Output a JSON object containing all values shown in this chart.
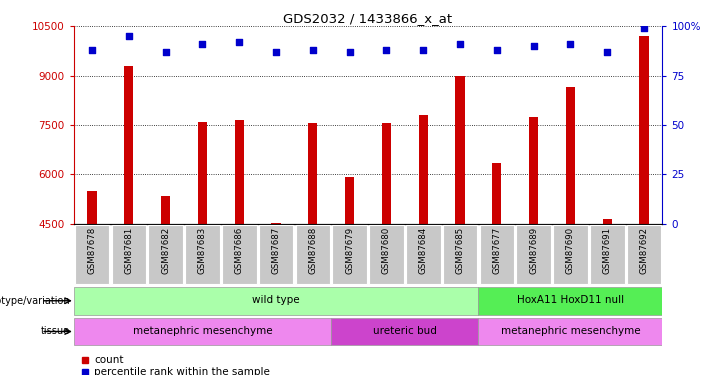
{
  "title": "GDS2032 / 1433866_x_at",
  "samples": [
    "GSM87678",
    "GSM87681",
    "GSM87682",
    "GSM87683",
    "GSM87686",
    "GSM87687",
    "GSM87688",
    "GSM87679",
    "GSM87680",
    "GSM87684",
    "GSM87685",
    "GSM87677",
    "GSM87689",
    "GSM87690",
    "GSM87691",
    "GSM87692"
  ],
  "counts": [
    5500,
    9300,
    5350,
    7600,
    7650,
    4520,
    7550,
    5900,
    7550,
    7800,
    9000,
    6350,
    7750,
    8650,
    4650,
    10200
  ],
  "percentile_ranks": [
    88,
    95,
    87,
    91,
    92,
    87,
    88,
    87,
    88,
    88,
    91,
    88,
    90,
    91,
    87,
    99
  ],
  "ylim_left": [
    4500,
    10500
  ],
  "ylim_right": [
    0,
    100
  ],
  "yticks_left": [
    4500,
    6000,
    7500,
    9000,
    10500
  ],
  "yticks_right": [
    0,
    25,
    50,
    75,
    100
  ],
  "bar_color": "#cc0000",
  "dot_color": "#0000cc",
  "left_tick_color": "#cc0000",
  "right_tick_color": "#0000cc",
  "grid_color": "#000000",
  "background_color": "#ffffff",
  "tick_label_bg": "#c8c8c8",
  "genotype_groups": [
    {
      "label": "wild type",
      "start": 0,
      "end": 10,
      "color": "#aaffaa"
    },
    {
      "label": "HoxA11 HoxD11 null",
      "start": 11,
      "end": 15,
      "color": "#55ee55"
    }
  ],
  "tissue_groups": [
    {
      "label": "metanephric mesenchyme",
      "start": 0,
      "end": 6,
      "color": "#ee88ee"
    },
    {
      "label": "ureteric bud",
      "start": 7,
      "end": 10,
      "color": "#cc44cc"
    },
    {
      "label": "metanephric mesenchyme",
      "start": 11,
      "end": 15,
      "color": "#ee88ee"
    }
  ],
  "legend_items": [
    {
      "label": "count",
      "color": "#cc0000"
    },
    {
      "label": "percentile rank within the sample",
      "color": "#0000cc"
    }
  ]
}
